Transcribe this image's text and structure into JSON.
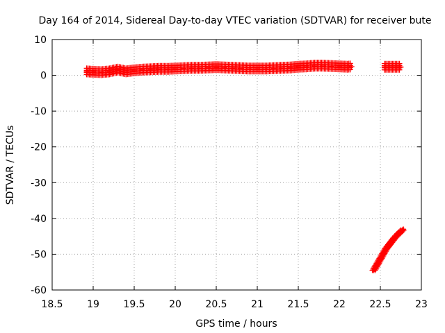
{
  "chart_data": {
    "type": "scatter",
    "title": "Day 164 of 2014, Sidereal Day-to-day VTEC variation (SDTVAR) for receiver bute",
    "xlabel": "GPS time / hours",
    "ylabel": "SDTVAR / TECUs",
    "xlim": [
      18.5,
      23
    ],
    "ylim": [
      -60,
      10
    ],
    "x_ticks": [
      "18.5",
      "19",
      "19.5",
      "20",
      "20.5",
      "21",
      "21.5",
      "22",
      "22.5",
      "23"
    ],
    "y_ticks": [
      "10",
      "0",
      "-10",
      "-20",
      "-30",
      "-40",
      "-50",
      "-60"
    ],
    "grid": true,
    "legend": "none",
    "marker": "+",
    "color": "#ff0000",
    "series": [
      {
        "x": [
          18.92,
          19.0,
          19.1,
          19.2,
          19.3,
          19.4,
          19.5,
          19.6,
          19.7,
          19.8,
          19.9,
          20.0,
          20.1,
          20.2,
          20.3,
          20.4,
          20.5,
          20.6,
          20.7,
          20.8,
          20.9,
          21.0,
          21.1,
          21.2,
          21.3,
          21.4,
          21.5,
          21.6,
          21.7,
          21.8,
          21.9,
          22.0,
          22.1,
          22.15
        ],
        "y": [
          1.0,
          0.9,
          0.8,
          1.0,
          1.5,
          1.0,
          1.3,
          1.5,
          1.6,
          1.7,
          1.7,
          1.8,
          1.9,
          2.0,
          2.0,
          2.1,
          2.2,
          2.1,
          2.0,
          1.9,
          1.8,
          1.8,
          1.8,
          1.9,
          2.0,
          2.1,
          2.3,
          2.4,
          2.6,
          2.6,
          2.5,
          2.4,
          2.3,
          2.4
        ]
      },
      {
        "x": [
          22.55,
          22.6,
          22.65,
          22.7,
          22.75
        ],
        "y": [
          2.3,
          2.3,
          2.3,
          2.3,
          2.3
        ]
      },
      {
        "x": [
          22.42,
          22.47,
          22.52,
          22.57,
          22.62,
          22.67,
          22.72,
          22.78
        ],
        "y": [
          -54.5,
          -52.5,
          -50.5,
          -48.5,
          -47.0,
          -45.5,
          -44.3,
          -43.0
        ]
      }
    ]
  }
}
